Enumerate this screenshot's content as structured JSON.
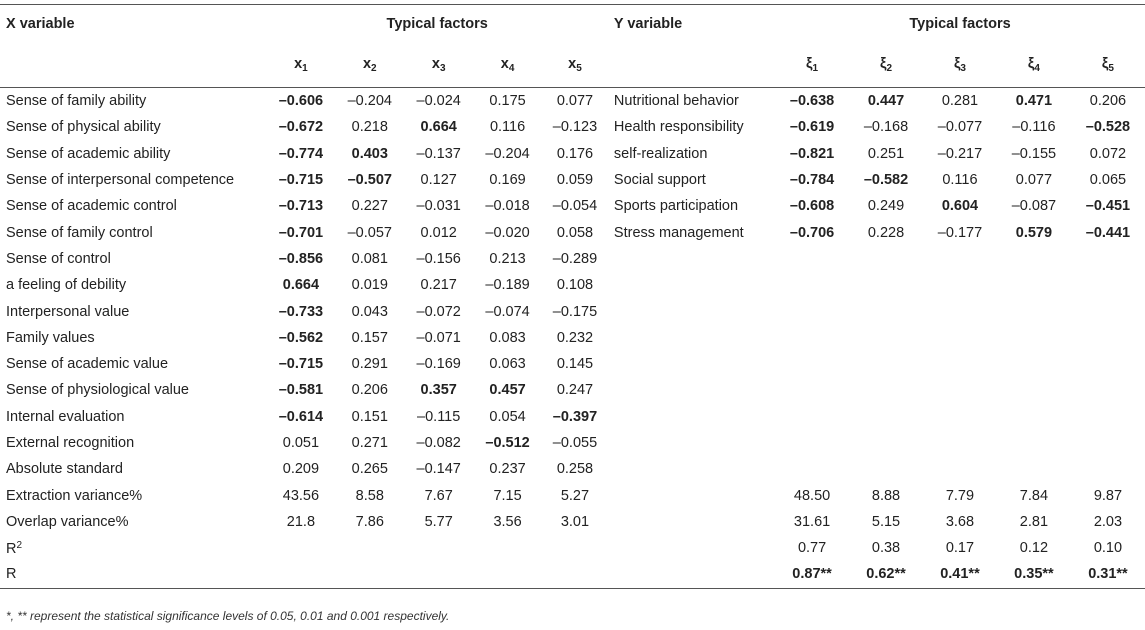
{
  "header": {
    "x_variable": "X variable",
    "y_variable": "Y variable",
    "typical_factors_left": "Typical factors",
    "typical_factors_right": "Typical factors"
  },
  "x_factors": [
    {
      "base": "x",
      "sub": "1"
    },
    {
      "base": "x",
      "sub": "2"
    },
    {
      "base": "x",
      "sub": "3"
    },
    {
      "base": "x",
      "sub": "4"
    },
    {
      "base": "x",
      "sub": "5"
    }
  ],
  "y_factors": [
    {
      "base": "ξ",
      "sub": "1"
    },
    {
      "base": "ξ",
      "sub": "2"
    },
    {
      "base": "ξ",
      "sub": "3"
    },
    {
      "base": "ξ",
      "sub": "4"
    },
    {
      "base": "ξ",
      "sub": "5"
    }
  ],
  "rows": [
    {
      "x_label": "Sense of family ability",
      "x_vals": [
        "–0.606",
        "–0.204",
        "–0.024",
        "0.175",
        "0.077"
      ],
      "x_bold": [
        1,
        0,
        0,
        0,
        0
      ],
      "y_label": "Nutritional behavior",
      "y_vals": [
        "–0.638",
        "0.447",
        "0.281",
        "0.471",
        "0.206"
      ],
      "y_bold": [
        1,
        1,
        0,
        1,
        0
      ]
    },
    {
      "x_label": "Sense of physical ability",
      "x_vals": [
        "–0.672",
        "0.218",
        "0.664",
        "0.116",
        "–0.123"
      ],
      "x_bold": [
        1,
        0,
        1,
        0,
        0
      ],
      "y_label": "Health responsibility",
      "y_vals": [
        "–0.619",
        "–0.168",
        "–0.077",
        "–0.116",
        "–0.528"
      ],
      "y_bold": [
        1,
        0,
        0,
        0,
        1
      ]
    },
    {
      "x_label": "Sense of academic ability",
      "x_vals": [
        "–0.774",
        "0.403",
        "–0.137",
        "–0.204",
        "0.176"
      ],
      "x_bold": [
        1,
        1,
        0,
        0,
        0
      ],
      "y_label": "self-realization",
      "y_vals": [
        "–0.821",
        "0.251",
        "–0.217",
        "–0.155",
        "0.072"
      ],
      "y_bold": [
        1,
        0,
        0,
        0,
        0
      ]
    },
    {
      "x_label": "Sense of interpersonal competence",
      "x_vals": [
        "–0.715",
        "–0.507",
        "0.127",
        "0.169",
        "0.059"
      ],
      "x_bold": [
        1,
        1,
        0,
        0,
        0
      ],
      "y_label": "Social support",
      "y_vals": [
        "–0.784",
        "–0.582",
        "0.116",
        "0.077",
        "0.065"
      ],
      "y_bold": [
        1,
        1,
        0,
        0,
        0
      ]
    },
    {
      "x_label": "Sense of academic control",
      "x_vals": [
        "–0.713",
        "0.227",
        "–0.031",
        "–0.018",
        "–0.054"
      ],
      "x_bold": [
        1,
        0,
        0,
        0,
        0
      ],
      "y_label": "Sports participation",
      "y_vals": [
        "–0.608",
        "0.249",
        "0.604",
        "–0.087",
        "–0.451"
      ],
      "y_bold": [
        1,
        0,
        1,
        0,
        1
      ]
    },
    {
      "x_label": "Sense of family control",
      "x_vals": [
        "–0.701",
        "–0.057",
        "0.012",
        "–0.020",
        "0.058"
      ],
      "x_bold": [
        1,
        0,
        0,
        0,
        0
      ],
      "y_label": "Stress management",
      "y_vals": [
        "–0.706",
        "0.228",
        "–0.177",
        "0.579",
        "–0.441"
      ],
      "y_bold": [
        1,
        0,
        0,
        1,
        1
      ]
    },
    {
      "x_label": "Sense of control",
      "x_vals": [
        "–0.856",
        "0.081",
        "–0.156",
        "0.213",
        "–0.289"
      ],
      "x_bold": [
        1,
        0,
        0,
        0,
        0
      ],
      "y_label": "",
      "y_vals": [
        "",
        "",
        "",
        "",
        ""
      ],
      "y_bold": [
        0,
        0,
        0,
        0,
        0
      ]
    },
    {
      "x_label": "a feeling of debility",
      "x_vals": [
        "0.664",
        "0.019",
        "0.217",
        "–0.189",
        "0.108"
      ],
      "x_bold": [
        1,
        0,
        0,
        0,
        0
      ],
      "y_label": "",
      "y_vals": [
        "",
        "",
        "",
        "",
        ""
      ],
      "y_bold": [
        0,
        0,
        0,
        0,
        0
      ]
    },
    {
      "x_label": "Interpersonal value",
      "x_vals": [
        "–0.733",
        "0.043",
        "–0.072",
        "–0.074",
        "–0.175"
      ],
      "x_bold": [
        1,
        0,
        0,
        0,
        0
      ],
      "y_label": "",
      "y_vals": [
        "",
        "",
        "",
        "",
        ""
      ],
      "y_bold": [
        0,
        0,
        0,
        0,
        0
      ]
    },
    {
      "x_label": "Family values",
      "x_vals": [
        "–0.562",
        "0.157",
        "–0.071",
        "0.083",
        "0.232"
      ],
      "x_bold": [
        1,
        0,
        0,
        0,
        0
      ],
      "y_label": "",
      "y_vals": [
        "",
        "",
        "",
        "",
        ""
      ],
      "y_bold": [
        0,
        0,
        0,
        0,
        0
      ]
    },
    {
      "x_label": "Sense of academic value",
      "x_vals": [
        "–0.715",
        "0.291",
        "–0.169",
        "0.063",
        "0.145"
      ],
      "x_bold": [
        1,
        0,
        0,
        0,
        0
      ],
      "y_label": "",
      "y_vals": [
        "",
        "",
        "",
        "",
        ""
      ],
      "y_bold": [
        0,
        0,
        0,
        0,
        0
      ]
    },
    {
      "x_label": "Sense of physiological value",
      "x_vals": [
        "–0.581",
        "0.206",
        "0.357",
        "0.457",
        "0.247"
      ],
      "x_bold": [
        1,
        0,
        1,
        1,
        0
      ],
      "y_label": "",
      "y_vals": [
        "",
        "",
        "",
        "",
        ""
      ],
      "y_bold": [
        0,
        0,
        0,
        0,
        0
      ]
    },
    {
      "x_label": "Internal evaluation",
      "x_vals": [
        "–0.614",
        "0.151",
        "–0.115",
        "0.054",
        "–0.397"
      ],
      "x_bold": [
        1,
        0,
        0,
        0,
        1
      ],
      "y_label": "",
      "y_vals": [
        "",
        "",
        "",
        "",
        ""
      ],
      "y_bold": [
        0,
        0,
        0,
        0,
        0
      ]
    },
    {
      "x_label": "External recognition",
      "x_vals": [
        "0.051",
        "0.271",
        "–0.082",
        "–0.512",
        "–0.055"
      ],
      "x_bold": [
        0,
        0,
        0,
        1,
        0
      ],
      "y_label": "",
      "y_vals": [
        "",
        "",
        "",
        "",
        ""
      ],
      "y_bold": [
        0,
        0,
        0,
        0,
        0
      ]
    },
    {
      "x_label": "Absolute standard",
      "x_vals": [
        "0.209",
        "0.265",
        "–0.147",
        "0.237",
        "0.258"
      ],
      "x_bold": [
        0,
        0,
        0,
        0,
        0
      ],
      "y_label": "",
      "y_vals": [
        "",
        "",
        "",
        "",
        ""
      ],
      "y_bold": [
        0,
        0,
        0,
        0,
        0
      ]
    },
    {
      "x_label": "Extraction variance%",
      "x_vals": [
        "43.56",
        "8.58",
        "7.67",
        "7.15",
        "5.27"
      ],
      "x_bold": [
        0,
        0,
        0,
        0,
        0
      ],
      "y_label": "",
      "y_vals": [
        "48.50",
        "8.88",
        "7.79",
        "7.84",
        "9.87"
      ],
      "y_bold": [
        0,
        0,
        0,
        0,
        0
      ]
    },
    {
      "x_label": "Overlap variance%",
      "x_vals": [
        "21.8",
        "7.86",
        "5.77",
        "3.56",
        "3.01"
      ],
      "x_bold": [
        0,
        0,
        0,
        0,
        0
      ],
      "y_label": "",
      "y_vals": [
        "31.61",
        "5.15",
        "3.68",
        "2.81",
        "2.03"
      ],
      "y_bold": [
        0,
        0,
        0,
        0,
        0
      ]
    },
    {
      "x_label": "R",
      "x_label_sup": "2",
      "x_vals": [
        "",
        "",
        "",
        "",
        ""
      ],
      "x_bold": [
        0,
        0,
        0,
        0,
        0
      ],
      "y_label": "",
      "y_vals": [
        "0.77",
        "0.38",
        "0.17",
        "0.12",
        "0.10"
      ],
      "y_bold": [
        0,
        0,
        0,
        0,
        0
      ]
    },
    {
      "x_label": "R",
      "x_vals": [
        "",
        "",
        "",
        "",
        ""
      ],
      "x_bold": [
        0,
        0,
        0,
        0,
        0
      ],
      "y_label": "",
      "y_vals": [
        "0.87**",
        "0.62**",
        "0.41**",
        "0.35**",
        "0.31**"
      ],
      "y_bold": [
        1,
        1,
        1,
        1,
        1
      ]
    }
  ],
  "footnote": "*, ** represent the statistical significance levels of 0.05, 0.01 and 0.001 respectively."
}
